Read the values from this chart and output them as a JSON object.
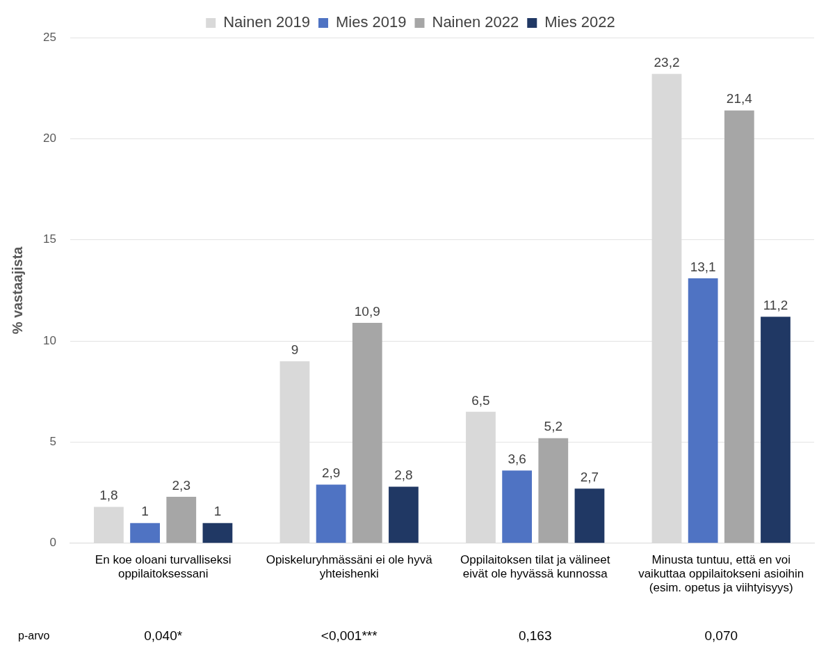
{
  "chart_data": {
    "type": "bar",
    "ylabel": "% vastaajista",
    "categories": [
      "En koe oloani turvalliseksi oppilaitoksessani",
      "Opiskeluryhmässäni ei ole hyvä yhteishenki",
      "Oppilaitoksen tilat ja välineet eivät ole hyvässä kunnossa",
      "Minusta tuntuu, että en voi vaikuttaa oppilaitokseni asioihin (esim. opetus ja viihtyisyys)"
    ],
    "series": [
      {
        "name": "Nainen 2019",
        "color": "#d9d9d9",
        "values": [
          1.8,
          9,
          6.5,
          23.2
        ],
        "value_labels": [
          "1,8",
          "9",
          "6,5",
          "23,2"
        ]
      },
      {
        "name": "Mies 2019",
        "color": "#4f73c3",
        "values": [
          1,
          2.9,
          3.6,
          13.1
        ],
        "value_labels": [
          "1",
          "2,9",
          "3,6",
          "13,1"
        ]
      },
      {
        "name": "Nainen 2022",
        "color": "#a6a6a6",
        "values": [
          2.3,
          10.9,
          5.2,
          21.4
        ],
        "value_labels": [
          "2,3",
          "10,9",
          "5,2",
          "21,4"
        ]
      },
      {
        "name": "Mies 2022",
        "color": "#203864",
        "values": [
          1,
          2.8,
          2.7,
          11.2
        ],
        "value_labels": [
          "1",
          "2,8",
          "2,7",
          "11,2"
        ]
      }
    ],
    "ylim": [
      0,
      25
    ],
    "yticks": [
      0,
      5,
      10,
      15,
      20,
      25
    ],
    "grid": "y",
    "legend": "top",
    "annotations": [
      "p-arvo",
      "0,040*",
      "<0,001***",
      "0,163",
      "0,070"
    ]
  }
}
